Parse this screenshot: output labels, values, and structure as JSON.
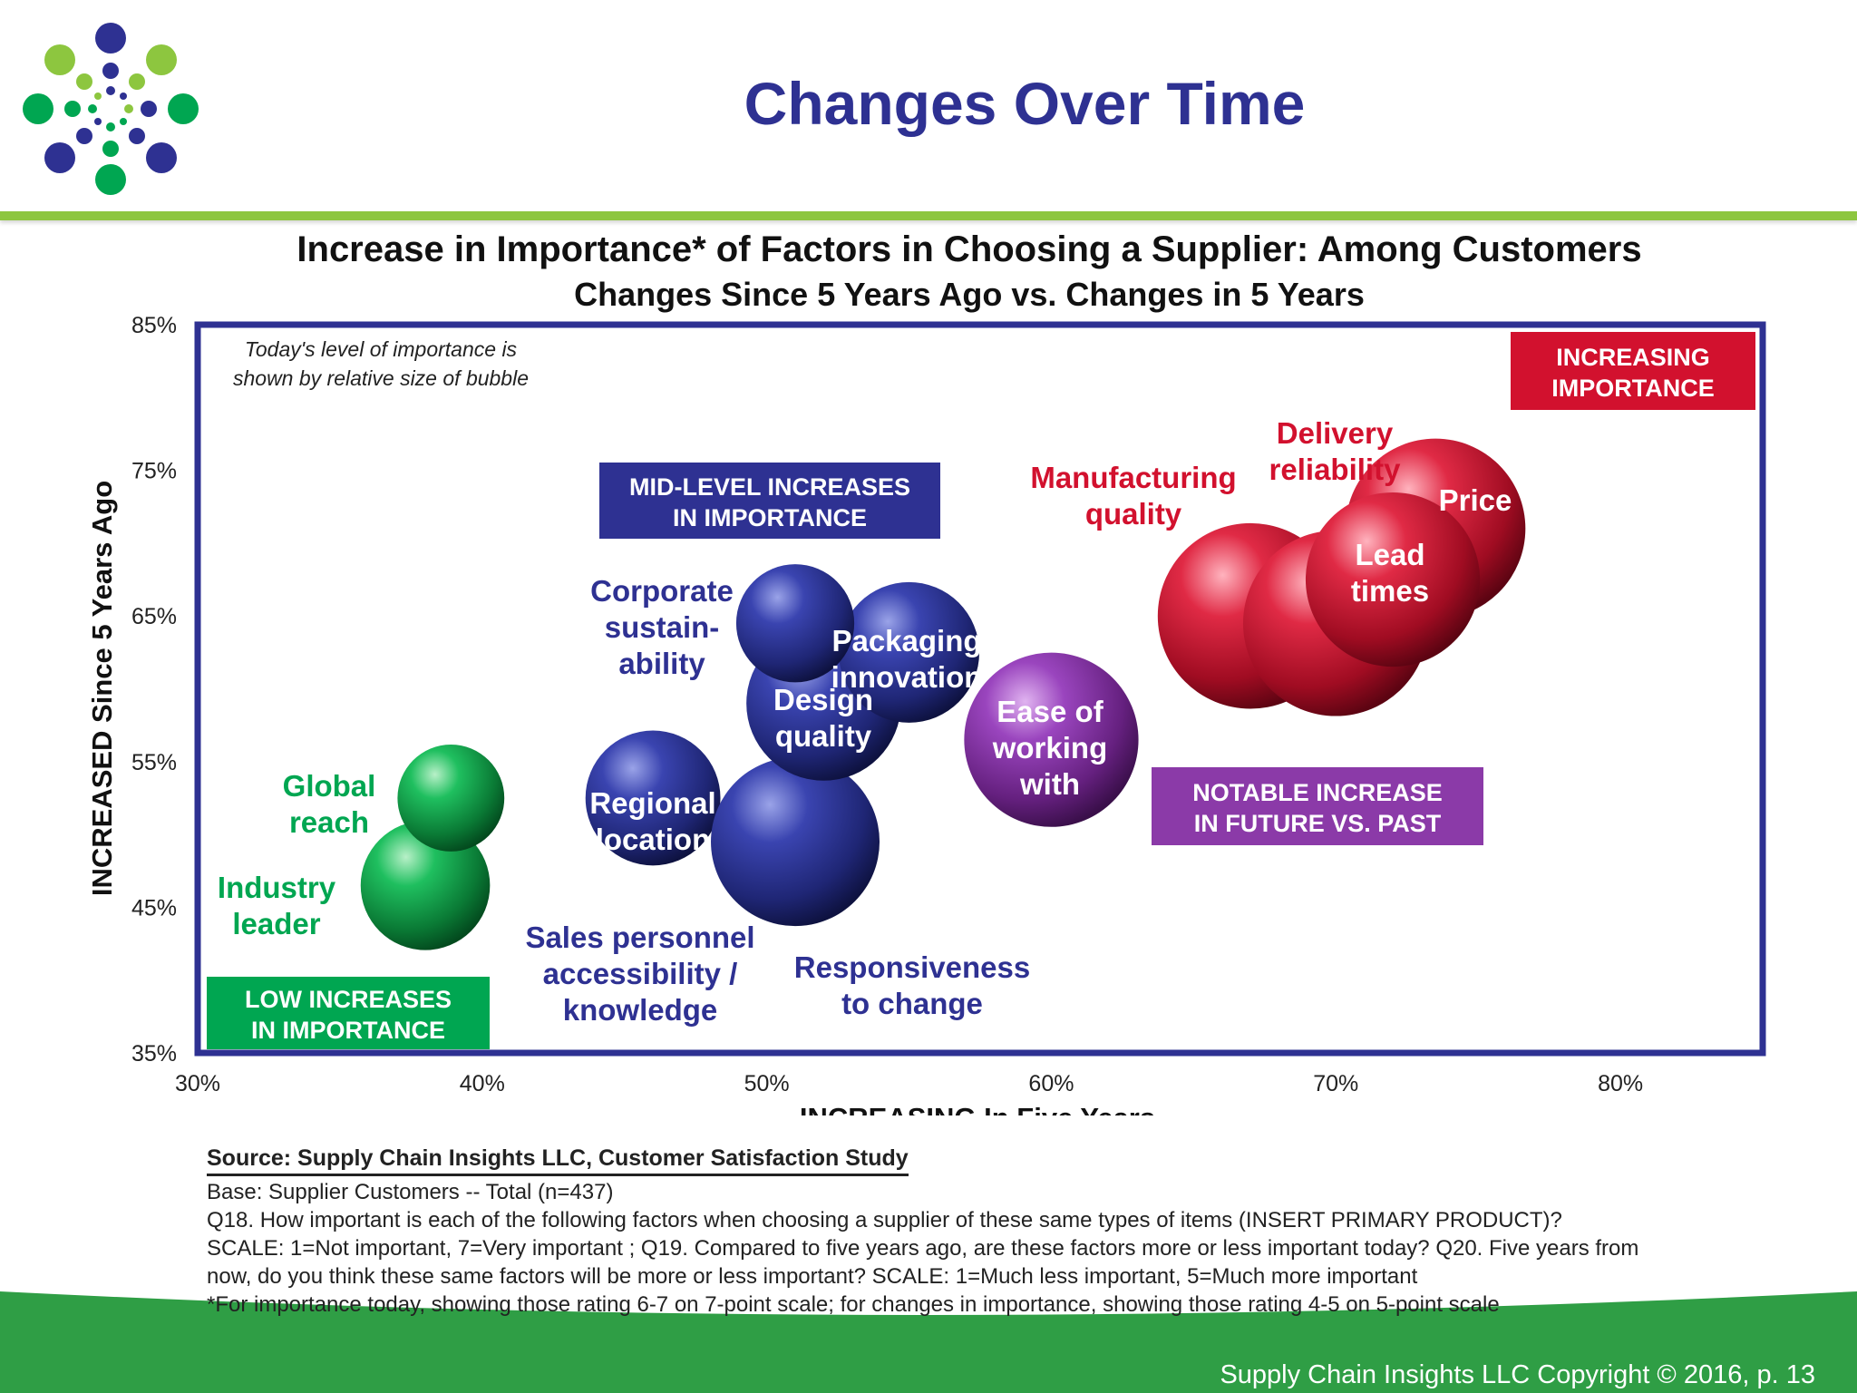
{
  "slide": {
    "title": "Changes Over Time",
    "copyright": "Supply Chain Insights LLC Copyright © 2016, p. 13",
    "source": "Source:  Supply Chain Insights LLC, Customer Satisfaction Study",
    "base": "Base: Supplier Customers -- Total (n=437)",
    "question_1": "Q18. How important is each of the following factors when choosing a supplier of these same types of items (INSERT PRIMARY PRODUCT)?",
    "question_2": "SCALE: 1=Not important, 7=Very important ; Q19. Compared to five years ago, are these factors more or less important today? Q20. Five years from",
    "question_3": "now, do you think these same factors will be more or less important? SCALE: 1=Much less important, 5=Much more important",
    "asterisk_note": "*For importance today, showing those rating 6-7 on 7-point scale; for changes in importance, showing those rating 4-5 on 5-point scale"
  },
  "colors": {
    "brand_blue": "#2e3192",
    "brand_green": "#8dc63f",
    "footer_green": "#2f9e45",
    "low": "#00a651",
    "mid": "#2e3192",
    "notable": "#8b3aa8",
    "high": "#d2112e"
  },
  "chart_data": {
    "type": "bubble",
    "title": "Increase in Importance* of Factors in Choosing a Supplier:  Among Customers",
    "subtitle": "Changes Since 5 Years Ago vs. Changes in 5 Years",
    "xlabel": "INCREASING In Five Years",
    "ylabel": "INCREASED Since 5 Years Ago",
    "xlim": [
      30,
      85
    ],
    "ylim": [
      35,
      85
    ],
    "xticks": [
      "30%",
      "40%",
      "50%",
      "60%",
      "70%",
      "80%"
    ],
    "yticks": [
      "35%",
      "45%",
      "55%",
      "65%",
      "75%",
      "85%"
    ],
    "size_note_line1": "Today's level of importance is",
    "size_note_line2": "shown by relative size of bubble",
    "regions": [
      {
        "key": "low",
        "line1": "LOW INCREASES",
        "line2": "IN IMPORTANCE",
        "color": "#00a651"
      },
      {
        "key": "mid",
        "line1": "MID-LEVEL INCREASES",
        "line2": "IN IMPORTANCE",
        "color": "#2e3192"
      },
      {
        "key": "notable",
        "line1": "NOTABLE INCREASE",
        "line2": "IN FUTURE VS. PAST",
        "color": "#8b3aa8"
      },
      {
        "key": "high",
        "line1": "INCREASING",
        "line2": "IMPORTANCE",
        "color": "#d2112e"
      }
    ],
    "points": [
      {
        "name": "Industry leader",
        "x": 38,
        "y": 46.5,
        "size": 46,
        "group": "low",
        "label_lines": [
          "Industry",
          "leader"
        ]
      },
      {
        "name": "Global reach",
        "x": 38.9,
        "y": 52.5,
        "size": 38,
        "group": "low",
        "label_lines": [
          "Global",
          "reach"
        ]
      },
      {
        "name": "Regional location",
        "x": 46,
        "y": 52.5,
        "size": 48,
        "group": "mid",
        "label_lines": [
          "Regional",
          "location"
        ]
      },
      {
        "name": "Sales personnel accessibility / knowledge",
        "x": 51,
        "y": 49.5,
        "size": 60,
        "group": "mid",
        "label_lines": [
          "Sales personnel",
          "accessibility /",
          "knowledge"
        ]
      },
      {
        "name": "Responsiveness to change",
        "x": 51,
        "y": 49.5,
        "size": 60,
        "group": "mid",
        "label_lines": [
          "Responsiveness",
          "to change"
        ]
      },
      {
        "name": "Design quality",
        "x": 52,
        "y": 59,
        "size": 55,
        "group": "mid",
        "label_lines": [
          "Design",
          "quality"
        ]
      },
      {
        "name": "Packaging innovation",
        "x": 55,
        "y": 62.5,
        "size": 50,
        "group": "mid",
        "label_lines": [
          "Packaging",
          "innovation"
        ]
      },
      {
        "name": "Corporate sustainability",
        "x": 51,
        "y": 64.5,
        "size": 42,
        "group": "mid",
        "label_lines": [
          "Corporate",
          "sustain-",
          "ability"
        ]
      },
      {
        "name": "Ease of working with",
        "x": 60,
        "y": 56.5,
        "size": 62,
        "group": "notable",
        "label_lines": [
          "Ease of",
          "working",
          "with"
        ]
      },
      {
        "name": "Manufacturing quality",
        "x": 67,
        "y": 65,
        "size": 66,
        "group": "high",
        "label_lines": [
          "Manufacturing",
          "quality"
        ]
      },
      {
        "name": "Delivery reliability",
        "x": 70,
        "y": 64.5,
        "size": 66,
        "group": "high",
        "label_lines": [
          "Delivery",
          "reliability"
        ]
      },
      {
        "name": "Price",
        "x": 73.5,
        "y": 71,
        "size": 64,
        "group": "high",
        "label_lines": [
          "Price"
        ]
      },
      {
        "name": "Lead times",
        "x": 72,
        "y": 67.5,
        "size": 62,
        "group": "high",
        "label_lines": [
          "Lead",
          "times"
        ]
      }
    ]
  }
}
